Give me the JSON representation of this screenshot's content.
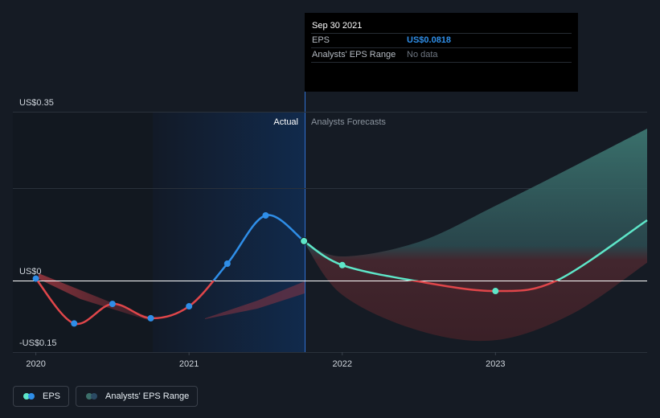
{
  "tooltip": {
    "date": "Sep 30 2021",
    "rows": [
      {
        "label": "EPS",
        "value": "US$0.0818"
      },
      {
        "label": "Analysts' EPS Range",
        "value": "No data"
      }
    ]
  },
  "labels": {
    "actual": "Actual",
    "forecast": "Analysts Forecasts"
  },
  "legend": {
    "eps": "EPS",
    "range": "Analysts' EPS Range"
  },
  "colors": {
    "background": "#151b24",
    "eps_actual": "#2f8ee8",
    "eps_forecast": "#5ee6c8",
    "decline": "#e0464a",
    "range_fill": "#3c6f6a",
    "range_fill_low": "#5a2a31",
    "highlight_band": "#13294a"
  },
  "chart_data": {
    "type": "line",
    "y_ticks": [
      {
        "value": 0.35,
        "label": "US$0.35"
      },
      {
        "value": 0,
        "label": "US$0"
      },
      {
        "value": -0.15,
        "label": "-US$0.15"
      }
    ],
    "ylim": [
      -0.15,
      0.35
    ],
    "x_ticks": [
      {
        "value": 2020,
        "label": "2020"
      },
      {
        "value": 2021,
        "label": "2021"
      },
      {
        "value": 2022,
        "label": "2022"
      },
      {
        "value": 2023,
        "label": "2023"
      }
    ],
    "xlim": [
      2019.85,
      2023.99
    ],
    "actual_end": 2021.75,
    "highlight_start": 2020.75,
    "series": [
      {
        "name": "EPS",
        "points": [
          {
            "x": 2020.0,
            "y": 0.004
          },
          {
            "x": 2020.25,
            "y": -0.09
          },
          {
            "x": 2020.5,
            "y": -0.049
          },
          {
            "x": 2020.75,
            "y": -0.079
          },
          {
            "x": 2021.0,
            "y": -0.054
          },
          {
            "x": 2021.25,
            "y": 0.035
          },
          {
            "x": 2021.5,
            "y": 0.135
          },
          {
            "x": 2021.75,
            "y": 0.0818
          }
        ]
      },
      {
        "name": "EPS forecast",
        "points": [
          {
            "x": 2021.75,
            "y": 0.0818
          },
          {
            "x": 2022.0,
            "y": 0.032
          },
          {
            "x": 2022.5,
            "y": -0.002
          },
          {
            "x": 2023.0,
            "y": -0.022
          },
          {
            "x": 2023.4,
            "y": 0.0
          },
          {
            "x": 2023.99,
            "y": 0.125
          }
        ]
      }
    ],
    "range": {
      "x": [
        2021.75,
        2022.0,
        2022.5,
        2023.0,
        2023.5,
        2023.99
      ],
      "high": [
        0.08,
        0.05,
        0.08,
        0.155,
        0.235,
        0.315
      ],
      "low": [
        0.08,
        -0.03,
        -0.105,
        -0.125,
        -0.07,
        0.037
      ]
    }
  }
}
